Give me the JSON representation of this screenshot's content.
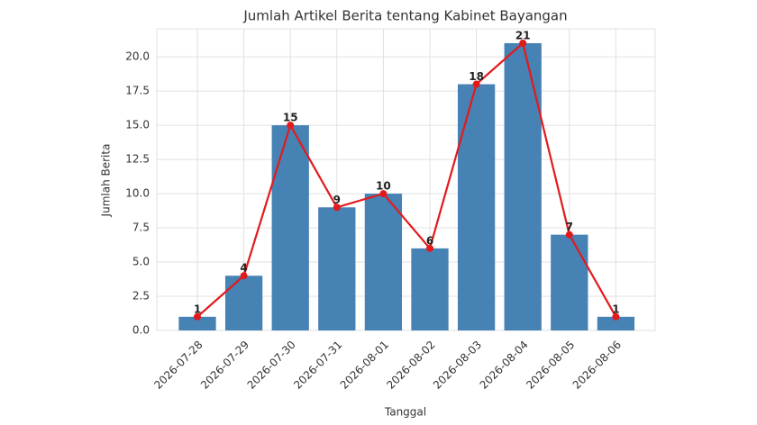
{
  "chart_data": {
    "type": "bar",
    "title": "Jumlah Artikel Berita tentang Kabinet Bayangan",
    "x_label": "Tanggal",
    "y_label": "Jumlah Berita",
    "categories": [
      "2026-07-28",
      "2026-07-29",
      "2026-07-30",
      "2026-07-31",
      "2026-08-01",
      "2026-08-02",
      "2026-08-03",
      "2026-08-04",
      "2026-08-05",
      "2026-08-06"
    ],
    "values": [
      1,
      4,
      15,
      9,
      10,
      6,
      18,
      21,
      7,
      1
    ],
    "color": "#4682b4",
    "line_color": "#e31a1c",
    "ylim": [
      0,
      22.05
    ],
    "yticks": [
      {
        "value": 0,
        "label": "0.0"
      },
      2.5,
      {
        "value": 5,
        "label": "5.0"
      },
      7.5,
      {
        "value": 10,
        "label": "10.0"
      },
      12.5,
      {
        "value": 15,
        "label": "15.0"
      },
      17.5,
      {
        "value": 20,
        "label": "20.0"
      }
    ],
    "grid": true
  }
}
